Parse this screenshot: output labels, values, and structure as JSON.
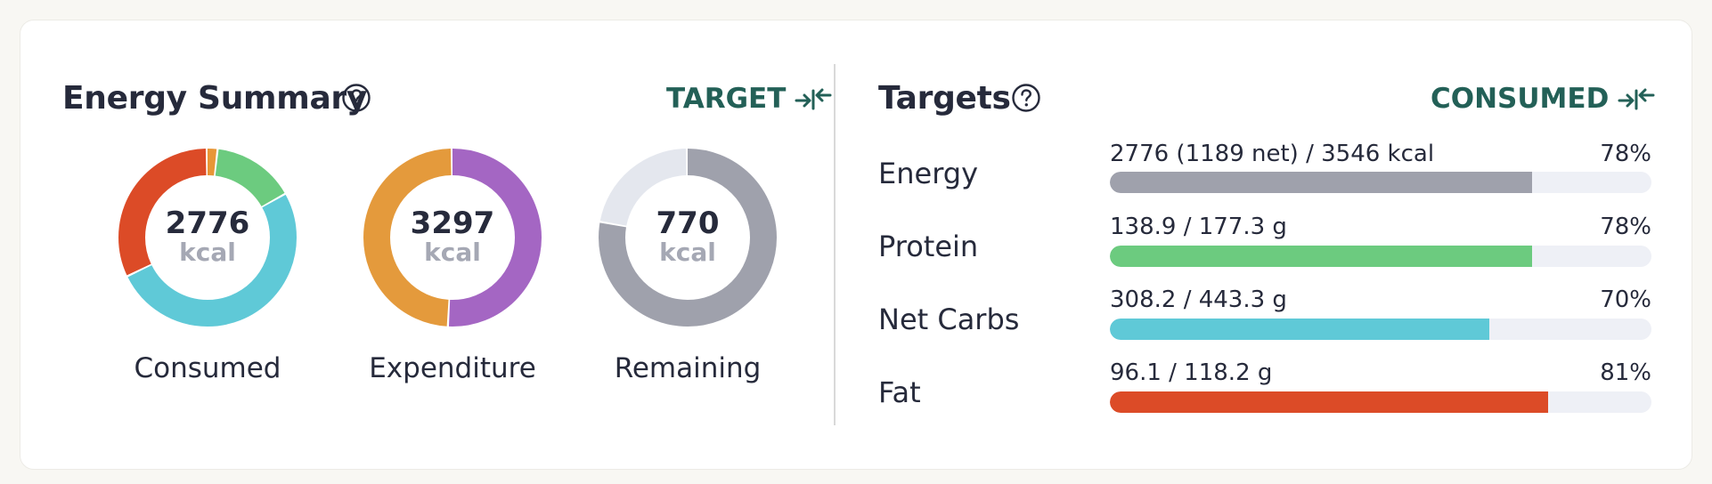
{
  "energy_summary": {
    "title": "Energy Summary",
    "help_icon": "question-circle-icon",
    "toggle_label": "TARGET",
    "toggle_icon": "arrows-inward-icon",
    "donuts": [
      {
        "label": "Consumed",
        "value": "2776",
        "unit": "kcal",
        "segments": [
          {
            "fraction": 0.02,
            "color": "#e89637"
          },
          {
            "fraction": 0.15,
            "color": "#6ccb7f"
          },
          {
            "fraction": 0.51,
            "color": "#5fc9d7"
          },
          {
            "fraction": 0.32,
            "color": "#dc4b27"
          }
        ]
      },
      {
        "label": "Expenditure",
        "value": "3297",
        "unit": "kcal",
        "segments": [
          {
            "fraction": 0.51,
            "color": "#a466c3"
          },
          {
            "fraction": 0.49,
            "color": "#e49a3c"
          }
        ]
      },
      {
        "label": "Remaining",
        "value": "770",
        "unit": "kcal",
        "segments": [
          {
            "fraction": 0.78,
            "color": "#9fa1ac"
          },
          {
            "fraction": 0.22,
            "color": "#e4e7ee"
          }
        ]
      }
    ]
  },
  "targets": {
    "title": "Targets",
    "help_icon": "question-circle-icon",
    "toggle_label": "CONSUMED",
    "toggle_icon": "arrows-inward-icon",
    "rows": [
      {
        "name": "Energy",
        "value": "2776 (1189 net) / 3546 kcal",
        "percent": "78%",
        "fill": 0.78,
        "color": "#9fa1ac"
      },
      {
        "name": "Protein",
        "value": "138.9 / 177.3 g",
        "percent": "78%",
        "fill": 0.78,
        "color": "#6ccb7f"
      },
      {
        "name": "Net Carbs",
        "value": "308.2 / 443.3 g",
        "percent": "70%",
        "fill": 0.7,
        "color": "#5fc9d7"
      },
      {
        "name": "Fat",
        "value": "96.1 / 118.2 g",
        "percent": "81%",
        "fill": 0.81,
        "color": "#dc4b27"
      }
    ]
  }
}
